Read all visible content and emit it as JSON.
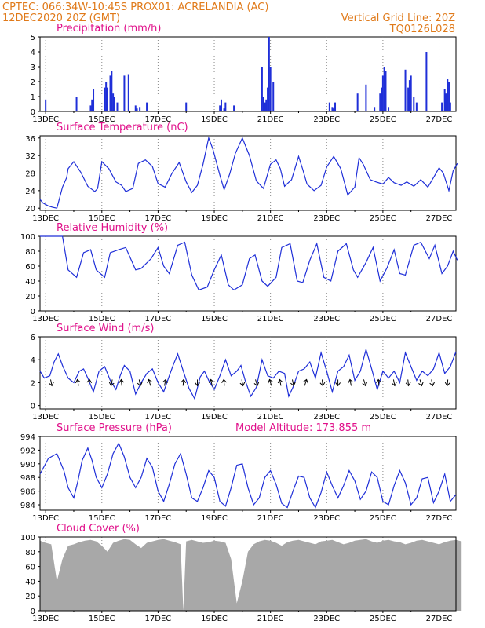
{
  "header": {
    "line1_left": "CPTEC:   066:34W-10:45S   PROX01: ACRELANDIA (AC)",
    "line2_left": "12DEC2020 20Z (GMT)",
    "line2_right": "Vertical Grid Line: 20Z",
    "line3_right": "TQ0126L028"
  },
  "colors": {
    "header": "#e07a1a",
    "title": "#e0108a",
    "series": "#1f2fd8",
    "cloud": "#a8a8a8",
    "arrow": "#000000"
  },
  "x_tick_labels": [
    "13DEC",
    "15DEC",
    "17DEC",
    "19DEC",
    "21DEC",
    "23DEC",
    "25DEC",
    "27DEC"
  ],
  "chart_data": [
    {
      "type": "bar",
      "title": "Precipitation (mm/h)",
      "x_unit": "days since 12DEC2020 20Z",
      "ylim": [
        0,
        5
      ],
      "yticks": [
        0,
        1,
        2,
        3,
        4,
        5
      ],
      "x": [
        0.2,
        1.3,
        1.8,
        1.85,
        1.9,
        2.3,
        2.35,
        2.4,
        2.5,
        2.55,
        2.6,
        2.65,
        2.75,
        3.0,
        3.15,
        3.4,
        3.45,
        3.55,
        3.8,
        5.2,
        6.4,
        6.45,
        6.55,
        6.6,
        6.9,
        7.9,
        7.95,
        8.0,
        8.05,
        8.1,
        8.15,
        8.2,
        8.3,
        10.3,
        10.4,
        10.45,
        10.5,
        11.3,
        11.6,
        11.9,
        12.1,
        12.15,
        12.2,
        12.25,
        12.3,
        12.4,
        13.0,
        13.1,
        13.15,
        13.2,
        13.3,
        13.4,
        13.75,
        14.3,
        14.4,
        14.45,
        14.5,
        14.55,
        14.6
      ],
      "values": [
        0.8,
        1.0,
        0.4,
        0.8,
        1.5,
        1.6,
        2.0,
        1.6,
        2.4,
        2.7,
        1.2,
        1.0,
        0.6,
        2.4,
        2.5,
        0.4,
        0.2,
        0.3,
        0.6,
        0.6,
        0.4,
        0.8,
        0.2,
        0.6,
        0.4,
        3.0,
        1.0,
        0.6,
        0.8,
        1.6,
        5.0,
        3.0,
        2.0,
        0.6,
        0.3,
        0.2,
        0.6,
        1.2,
        1.8,
        0.3,
        1.2,
        1.6,
        2.4,
        3.0,
        2.7,
        0.3,
        2.8,
        1.6,
        2.1,
        2.4,
        1.0,
        0.6,
        4.0,
        0.6,
        1.5,
        1.2,
        2.2,
        2.0,
        0.6
      ]
    },
    {
      "type": "line",
      "title": "Surface Temperature (nC)",
      "x_unit": "days since 12DEC2020 20Z",
      "ylim": [
        19.5,
        36.5
      ],
      "yticks": [
        20,
        24,
        28,
        32,
        36
      ],
      "x": [
        0,
        0.1,
        0.3,
        0.45,
        0.6,
        0.8,
        0.95,
        1.0,
        1.2,
        1.45,
        1.7,
        1.95,
        2.05,
        2.2,
        2.45,
        2.7,
        2.9,
        3.05,
        3.3,
        3.5,
        3.75,
        4.0,
        4.2,
        4.45,
        4.7,
        4.95,
        5.2,
        5.4,
        5.6,
        5.8,
        6.0,
        6.15,
        6.4,
        6.55,
        6.75,
        6.95,
        7.2,
        7.45,
        7.7,
        7.95,
        8.2,
        8.4,
        8.55,
        8.7,
        8.95,
        9.2,
        9.35,
        9.5,
        9.75,
        10.0,
        10.2,
        10.45,
        10.7,
        10.95,
        11.2,
        11.35,
        11.5,
        11.75,
        11.95,
        12.2,
        12.4,
        12.6,
        12.85,
        13.05,
        13.3,
        13.55,
        13.8,
        14.05,
        14.2,
        14.35,
        14.55,
        14.7,
        14.85
      ],
      "values": [
        22,
        21.2,
        20.5,
        20.2,
        20.0,
        24.8,
        27.0,
        29,
        30.6,
        28.2,
        25.0,
        23.8,
        24.5,
        30.6,
        29.0,
        26.0,
        25.2,
        23.8,
        24.5,
        30.2,
        31.0,
        29.5,
        25.6,
        24.8,
        28.0,
        30.4,
        26.0,
        23.6,
        25.2,
        30.0,
        36.0,
        33.5,
        27.5,
        24.2,
        27.8,
        32.5,
        36.0,
        32.0,
        26.2,
        24.5,
        30.0,
        31.0,
        29.0,
        25.0,
        26.5,
        31.8,
        28.8,
        25.5,
        24.0,
        25.2,
        29.4,
        31.8,
        29.0,
        23.0,
        24.8,
        31.5,
        30.0,
        26.5,
        26.0,
        25.5,
        27.0,
        25.8,
        25.2,
        26.0,
        25.0,
        26.5,
        24.8,
        27.5,
        29.2,
        28.0,
        24.0,
        28.5,
        30.2
      ]
    },
    {
      "type": "line",
      "title": "Relative Humidity (%)",
      "x_unit": "days since 12DEC2020 20Z",
      "ylim": [
        0,
        100
      ],
      "yticks": [
        0,
        20,
        40,
        60,
        80,
        100
      ],
      "x": [
        0,
        0.4,
        0.8,
        1.0,
        1.3,
        1.55,
        1.8,
        2.0,
        2.3,
        2.5,
        2.8,
        3.05,
        3.4,
        3.6,
        3.95,
        4.2,
        4.4,
        4.6,
        4.9,
        5.15,
        5.4,
        5.65,
        5.95,
        6.2,
        6.45,
        6.7,
        6.9,
        7.2,
        7.45,
        7.65,
        7.9,
        8.1,
        8.4,
        8.6,
        8.9,
        9.15,
        9.35,
        9.6,
        9.85,
        10.1,
        10.35,
        10.6,
        10.9,
        11.15,
        11.3,
        11.6,
        11.85,
        12.1,
        12.35,
        12.6,
        12.8,
        13.0,
        13.3,
        13.55,
        13.85,
        14.05,
        14.3,
        14.5,
        14.7,
        14.85
      ],
      "values": [
        100,
        100,
        100,
        55,
        45,
        78,
        82,
        55,
        45,
        78,
        82,
        85,
        55,
        57,
        70,
        85,
        60,
        50,
        88,
        92,
        48,
        28,
        32,
        55,
        75,
        35,
        28,
        35,
        70,
        75,
        40,
        33,
        45,
        85,
        90,
        40,
        38,
        68,
        90,
        45,
        40,
        80,
        90,
        55,
        45,
        65,
        85,
        40,
        58,
        82,
        50,
        48,
        88,
        92,
        70,
        88,
        50,
        60,
        80,
        68
      ]
    },
    {
      "type": "line",
      "title": "Surface Wind (m/s)",
      "x_unit": "days since 12DEC2020 20Z",
      "ylim": [
        -0.3,
        6
      ],
      "yticks": [
        0,
        2,
        4,
        6
      ],
      "x": [
        0,
        0.15,
        0.35,
        0.5,
        0.65,
        0.8,
        1.0,
        1.2,
        1.4,
        1.55,
        1.7,
        1.9,
        2.1,
        2.3,
        2.5,
        2.7,
        2.85,
        3.0,
        3.2,
        3.4,
        3.6,
        3.8,
        4.0,
        4.2,
        4.4,
        4.6,
        4.75,
        4.9,
        5.1,
        5.3,
        5.5,
        5.7,
        5.85,
        6.0,
        6.2,
        6.4,
        6.6,
        6.8,
        7.0,
        7.15,
        7.3,
        7.5,
        7.7,
        7.9,
        8.1,
        8.3,
        8.5,
        8.7,
        8.85,
        9.0,
        9.2,
        9.4,
        9.6,
        9.8,
        10.0,
        10.2,
        10.4,
        10.6,
        10.8,
        11.0,
        11.2,
        11.4,
        11.6,
        11.8,
        12.0,
        12.2,
        12.4,
        12.6,
        12.8,
        13.0,
        13.2,
        13.4,
        13.6,
        13.8,
        14.0,
        14.2,
        14.4,
        14.6,
        14.8
      ],
      "values": [
        3.0,
        2.4,
        2.6,
        3.8,
        4.5,
        3.5,
        2.4,
        2.0,
        3.0,
        3.2,
        2.4,
        1.2,
        3.0,
        3.4,
        2.2,
        1.4,
        2.6,
        3.5,
        3.0,
        1.0,
        2.0,
        2.8,
        3.2,
        2.0,
        1.2,
        2.6,
        3.6,
        4.5,
        3.0,
        1.5,
        0.6,
        2.5,
        3.0,
        2.2,
        1.4,
        2.6,
        4.0,
        2.6,
        3.0,
        3.5,
        2.2,
        0.8,
        1.6,
        4.0,
        2.6,
        2.4,
        3.0,
        2.8,
        0.8,
        1.6,
        3.0,
        3.2,
        3.8,
        2.4,
        4.6,
        3.0,
        1.2,
        3.0,
        3.4,
        4.4,
        2.2,
        3.0,
        4.9,
        3.2,
        1.4,
        3.0,
        2.4,
        3.0,
        2.0,
        4.6,
        3.4,
        2.2,
        3.0,
        2.6,
        3.2,
        4.6,
        2.8,
        3.4,
        4.7
      ]
    },
    {
      "type": "line",
      "title": "Surface Pressure (hPa)",
      "annotation": "Model Altitude: 173.855 m",
      "x_unit": "days since 12DEC2020 20Z",
      "ylim": [
        983.2,
        994
      ],
      "yticks": [
        984,
        986,
        988,
        990,
        992,
        994
      ],
      "x": [
        0,
        0.3,
        0.6,
        0.85,
        1.0,
        1.2,
        1.35,
        1.5,
        1.7,
        1.85,
        2.0,
        2.2,
        2.4,
        2.6,
        2.8,
        3.0,
        3.2,
        3.4,
        3.6,
        3.8,
        4.0,
        4.2,
        4.4,
        4.6,
        4.8,
        5.0,
        5.2,
        5.4,
        5.6,
        5.8,
        6.0,
        6.2,
        6.4,
        6.6,
        6.8,
        7.0,
        7.2,
        7.4,
        7.6,
        7.8,
        8.0,
        8.2,
        8.4,
        8.6,
        8.8,
        9.0,
        9.2,
        9.4,
        9.6,
        9.8,
        10.0,
        10.2,
        10.4,
        10.6,
        10.8,
        11.0,
        11.2,
        11.4,
        11.6,
        11.8,
        12.0,
        12.2,
        12.4,
        12.6,
        12.8,
        13.0,
        13.2,
        13.4,
        13.6,
        13.8,
        14.0,
        14.2,
        14.4,
        14.6,
        14.8
      ],
      "values": [
        988.5,
        990.8,
        991.5,
        989.0,
        986.5,
        985.0,
        987.5,
        990.5,
        992.3,
        990.5,
        988.0,
        986.5,
        988.5,
        991.5,
        993.0,
        991.0,
        988.0,
        986.5,
        988.0,
        990.8,
        989.5,
        986.0,
        984.5,
        987.0,
        990.0,
        991.5,
        988.5,
        985.0,
        984.5,
        986.5,
        989.0,
        988.0,
        984.5,
        983.8,
        986.5,
        989.8,
        990.0,
        986.5,
        984.0,
        985.0,
        988.0,
        989.0,
        987.0,
        984.2,
        983.6,
        986.0,
        988.2,
        988.0,
        985.0,
        983.6,
        985.8,
        988.8,
        986.8,
        985.0,
        986.8,
        989.0,
        987.5,
        984.8,
        986.0,
        988.8,
        988.0,
        984.5,
        984.0,
        986.8,
        989.0,
        987.2,
        984.0,
        985.0,
        987.8,
        988.0,
        984.3,
        986.0,
        988.5,
        984.5,
        985.5
      ]
    },
    {
      "type": "area",
      "title": "Cloud Cover (%)",
      "x_unit": "days since 12DEC2020 20Z",
      "ylim": [
        0,
        100
      ],
      "yticks": [
        0,
        20,
        40,
        60,
        80,
        100
      ],
      "x": [
        0,
        0.2,
        0.4,
        0.6,
        0.8,
        1.0,
        1.2,
        1.4,
        1.6,
        1.8,
        2.0,
        2.2,
        2.4,
        2.6,
        2.8,
        3.0,
        3.2,
        3.4,
        3.6,
        3.8,
        4.0,
        4.2,
        4.4,
        4.6,
        4.8,
        5.0,
        5.1,
        5.2,
        5.4,
        5.6,
        5.8,
        6.0,
        6.2,
        6.4,
        6.6,
        6.8,
        7.0,
        7.2,
        7.4,
        7.6,
        7.8,
        8.0,
        8.2,
        8.4,
        8.6,
        8.8,
        9.0,
        9.2,
        9.4,
        9.6,
        9.8,
        10.0,
        10.2,
        10.4,
        10.6,
        10.8,
        11.0,
        11.2,
        11.4,
        11.6,
        11.8,
        12.0,
        12.2,
        12.4,
        12.6,
        12.8,
        13.0,
        13.2,
        13.4,
        13.6,
        13.8,
        14.0,
        14.2,
        14.4,
        14.6,
        14.8,
        15.0
      ],
      "values": [
        95,
        92,
        90,
        40,
        70,
        88,
        90,
        93,
        95,
        96,
        94,
        88,
        80,
        92,
        95,
        97,
        96,
        90,
        85,
        92,
        94,
        96,
        97,
        95,
        93,
        90,
        0,
        94,
        96,
        94,
        92,
        93,
        95,
        94,
        92,
        70,
        10,
        40,
        80,
        90,
        94,
        96,
        95,
        92,
        88,
        93,
        95,
        96,
        94,
        92,
        90,
        94,
        95,
        96,
        93,
        90,
        92,
        95,
        96,
        97,
        94,
        92,
        95,
        96,
        94,
        93,
        90,
        92,
        95,
        96,
        94,
        92,
        90,
        93,
        95,
        96,
        94
      ]
    }
  ],
  "wind_arrows": {
    "x": [
      0.4,
      1.35,
      1.75,
      2.55,
      2.9,
      3.55,
      3.9,
      4.45,
      5.1,
      5.6,
      6.1,
      6.55,
      7.2,
      7.7,
      8.2,
      8.55,
      9.0,
      9.45,
      10.05,
      10.6,
      11.05,
      11.55,
      12.05,
      12.6,
      13.1,
      13.55,
      13.95,
      14.5
    ],
    "u": [
      0.2,
      -0.2,
      0.1,
      -0.2,
      -0.1,
      0.2,
      -0.3,
      0.2,
      0.1,
      0,
      -0.2,
      -0.1,
      0.2,
      0.3,
      -0.3,
      -0.2,
      0.2,
      0.3,
      0.1,
      0,
      -0.2,
      0.3,
      -0.1,
      0.2,
      0.1,
      0.3,
      0.2,
      -0.1
    ],
    "v": [
      -1,
      1,
      1,
      -1,
      1,
      -1,
      1,
      1,
      1,
      -1,
      1,
      1,
      -1,
      -1,
      1,
      1,
      -1,
      1,
      -1,
      -1,
      1,
      -1,
      1,
      -1,
      -1,
      -1,
      -1,
      -1
    ]
  }
}
